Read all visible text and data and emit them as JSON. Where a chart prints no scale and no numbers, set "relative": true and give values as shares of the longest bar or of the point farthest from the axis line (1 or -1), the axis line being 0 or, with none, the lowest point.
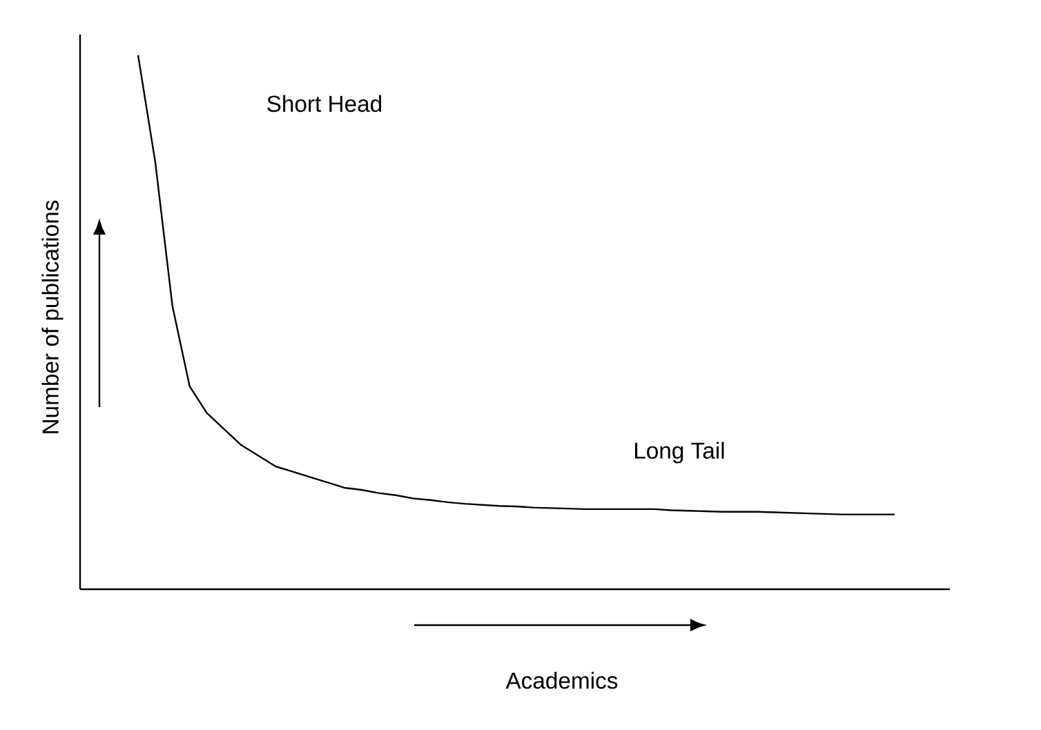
{
  "chart_data": {
    "type": "line",
    "relative": true,
    "xlabel": "Academics",
    "ylabel": "Number of publications",
    "color": "#000000",
    "annotations": [
      "Short Head",
      "Long Tail"
    ],
    "categories": [
      null,
      null,
      null,
      null,
      null,
      null,
      null,
      null,
      null,
      null,
      null,
      null,
      null,
      null,
      null,
      null,
      null,
      null,
      null,
      null,
      null,
      null,
      null,
      null,
      null,
      null,
      null,
      null,
      null,
      null,
      null,
      null,
      null,
      null,
      null,
      null,
      null,
      null,
      null,
      null,
      null,
      null,
      null,
      null,
      null
    ],
    "values": [
      1.0,
      0.8,
      0.53,
      0.38,
      0.33,
      0.3,
      0.27,
      0.25,
      0.23,
      0.22,
      0.21,
      0.2,
      0.19,
      0.186,
      0.18,
      0.176,
      0.17,
      0.167,
      0.163,
      0.16,
      0.158,
      0.156,
      0.155,
      0.153,
      0.152,
      0.151,
      0.15,
      0.15,
      0.15,
      0.15,
      0.15,
      0.148,
      0.147,
      0.146,
      0.145,
      0.145,
      0.145,
      0.144,
      0.143,
      0.142,
      0.141,
      0.14,
      0.14,
      0.14,
      0.14
    ]
  }
}
